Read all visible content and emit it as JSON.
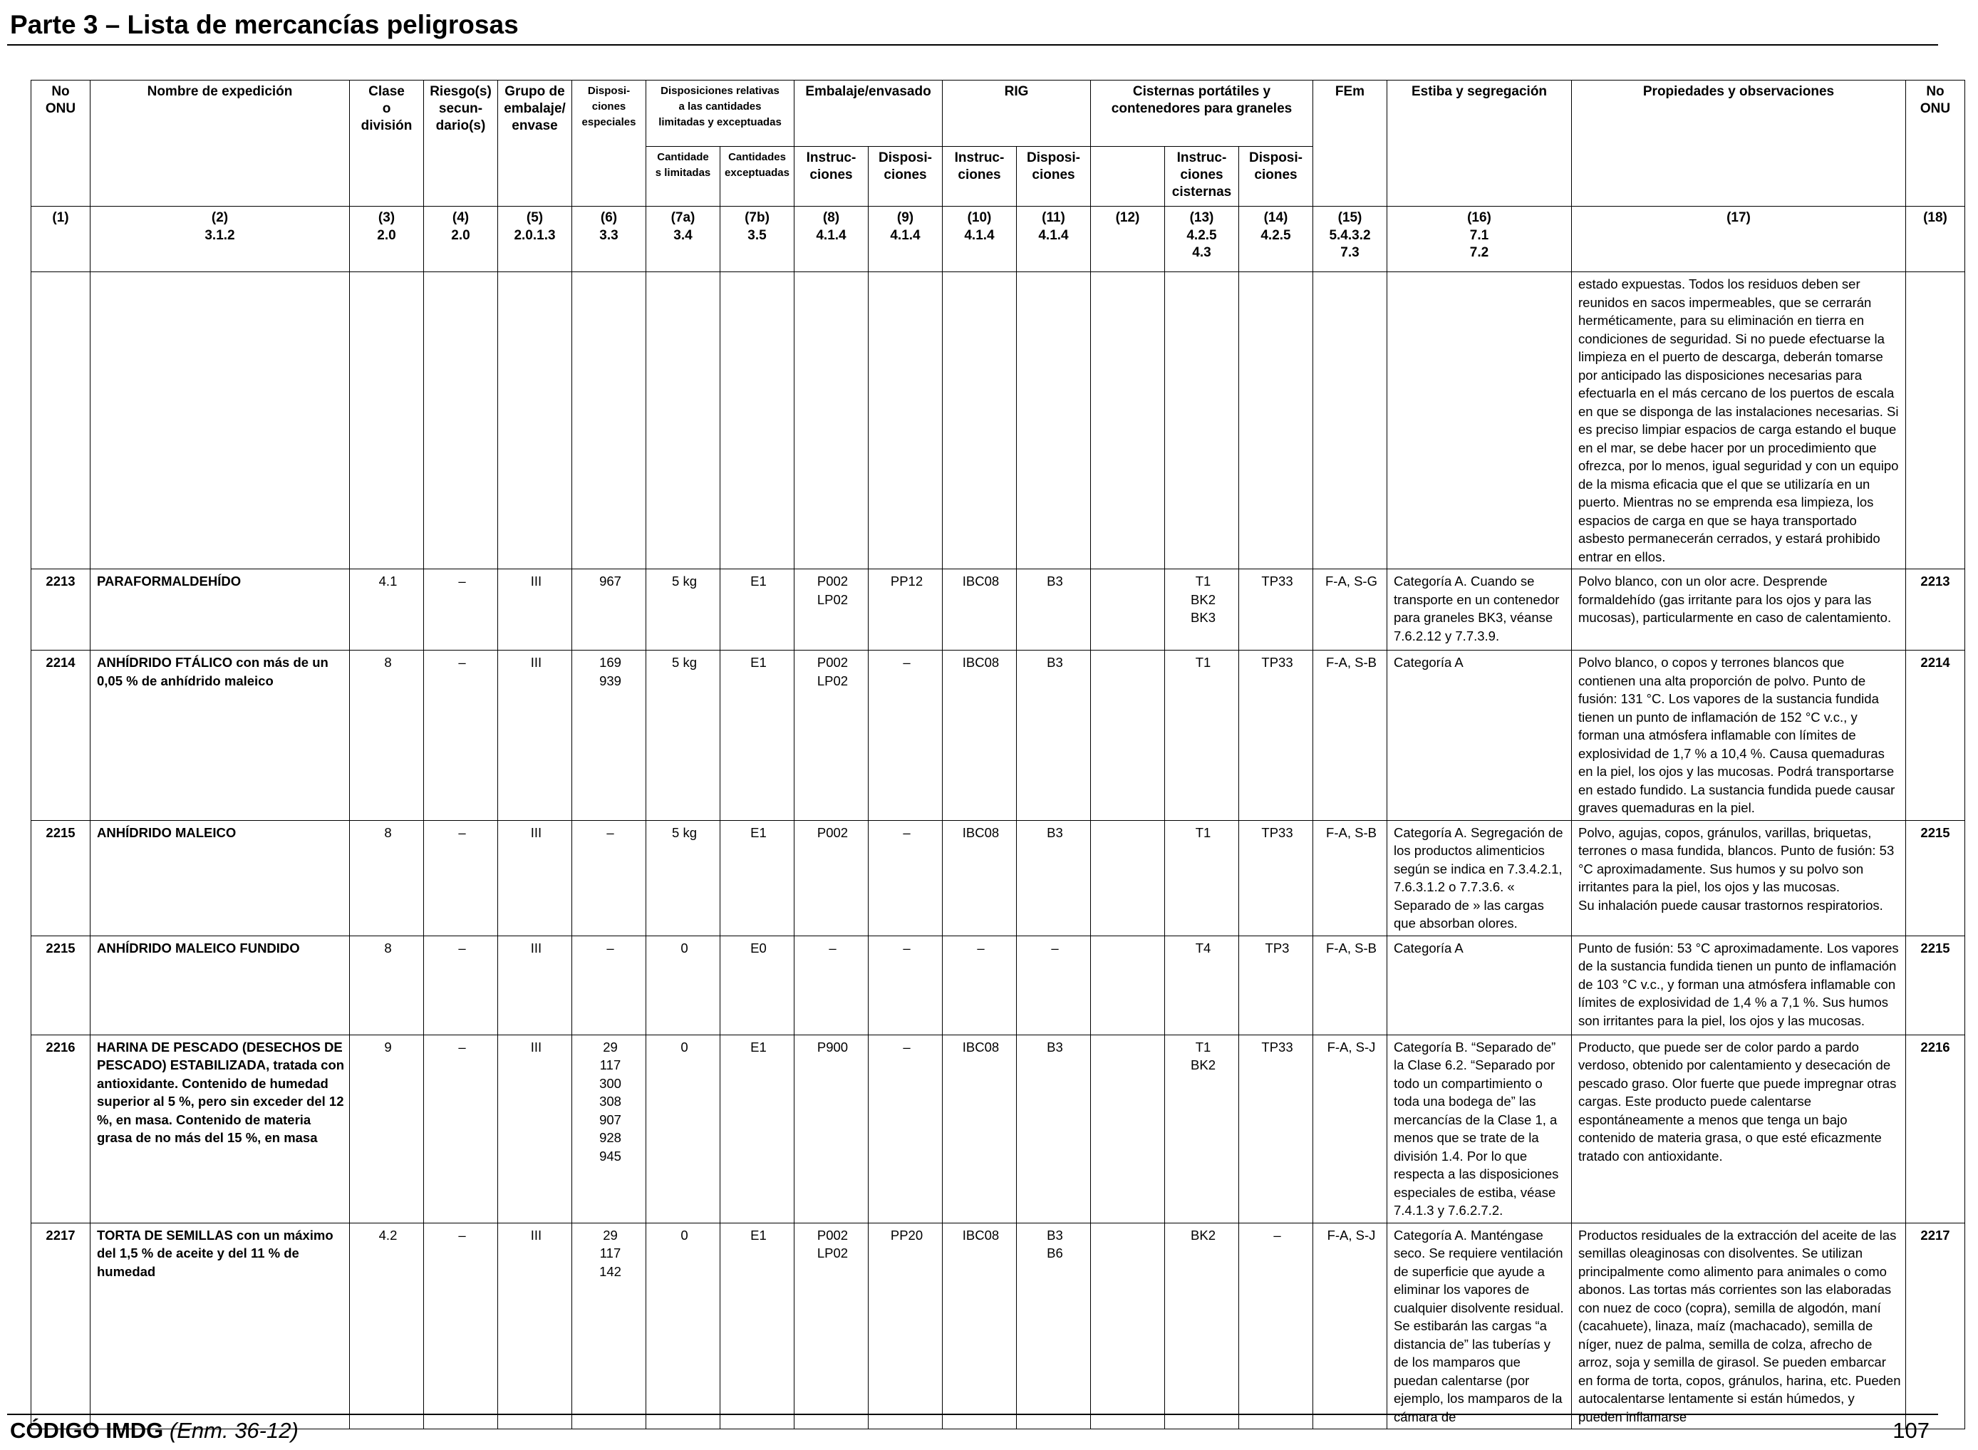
{
  "header": {
    "title": "Parte 3 – Lista de mercancías peligrosas"
  },
  "table": {
    "headers": {
      "un": "No\nONU",
      "name": "Nombre de expedición",
      "class": "Clase\no\ndivisión",
      "subrisk": "Riesgo(s)\nsecun-\ndario(s)",
      "pg": "Grupo de\nembalaje/\nenvase",
      "sp": "Disposi-\nciones\nespeciales",
      "limited": "Disposiciones relativas\na las cantidades\nlimitadas y exceptuadas",
      "limited_7a": "Cantidade\ns limitadas",
      "limited_7b": "Cantidades\nexceptuadas",
      "packing": "Embalaje/envasado",
      "instr": "Instruc-\nciones",
      "prov": "Disposi-\nciones",
      "ibc": "RIG",
      "tanks": "Cisternas portátiles y\ncontenedores para graneles",
      "tank_instr": "Instruc-\nciones\ncisternas",
      "ems": "FEm",
      "stowage": "Estiba y segregación",
      "props": "Propiedades y observaciones",
      "un_end": "No\nONU"
    },
    "column_numbers": [
      "(1)",
      "(2)\n3.1.2",
      "(3)\n2.0",
      "(4)\n2.0",
      "(5)\n2.0.1.3",
      "(6)\n3.3",
      "(7a)\n3.4",
      "(7b)\n3.5",
      "(8)\n4.1.4",
      "(9)\n4.1.4",
      "(10)\n4.1.4",
      "(11)\n4.1.4",
      "(12)",
      "(13)\n4.2.5\n4.3",
      "(14)\n4.2.5",
      "(15)\n5.4.3.2\n7.3",
      "(16)\n7.1\n7.2",
      "(17)",
      "(18)"
    ],
    "continuation": "estado expuestas. Todos los residuos deben ser reunidos en sacos impermeables, que se cerrarán herméticamente, para su eliminación en tierra en condiciones de seguridad. Si no puede efectuarse la limpieza en el puerto de descarga, deberán tomarse por anticipado las disposiciones necesarias para efectuarla en el más cercano de los puertos de escala en que se disponga de las instalaciones necesarias. Si es preciso limpiar espacios de carga estando el buque en el mar, se debe hacer por un procedimiento que ofrezca, por lo menos, igual seguridad y con un equipo de la misma eficacia que el que se utilizaría en un puerto. Mientras no se emprenda esa limpieza, los espacios de carga en que se haya transportado asbesto permanecerán cerrados, y estará prohibido entrar en ellos.",
    "rows": [
      {
        "un": "2213",
        "name_bold": "PARAFORMALDEHÍDO",
        "name_rest": "",
        "class": "4.1",
        "subrisk": "–",
        "pg": "III",
        "sp": "967",
        "limited": "5 kg",
        "excepted": "E1",
        "pack_instr": "P002\nLP02",
        "pack_prov": "PP12",
        "ibc_instr": "IBC08",
        "ibc_prov": "B3",
        "imo": "",
        "tank_instr": "T1\nBK2\nBK3",
        "tank_prov": "TP33",
        "ems": "F-A, S-G",
        "stowage": "Categoría A. Cuando se transporte en un contenedor para graneles BK3, véanse 7.6.2.12 y 7.7.3.9.",
        "props": "Polvo blanco, con un olor acre. Desprende formaldehído (gas irritante para los ojos y para las mucosas), particularmente en caso de calentamiento."
      },
      {
        "un": "2214",
        "name_bold": "ANHÍDRIDO FTÁLICO con más de un 0,05 % de anhídrido maleico",
        "name_rest": "",
        "class": "8",
        "subrisk": "–",
        "pg": "III",
        "sp": "169\n939",
        "limited": "5 kg",
        "excepted": "E1",
        "pack_instr": "P002\nLP02",
        "pack_prov": "–",
        "ibc_instr": "IBC08",
        "ibc_prov": "B3",
        "imo": "",
        "tank_instr": "T1",
        "tank_prov": "TP33",
        "ems": "F-A, S-B",
        "stowage": "Categoría A",
        "props": "Polvo blanco, o copos y terrones blancos que contienen una alta proporción de polvo. Punto de fusión: 131 °C. Los vapores de la sustancia fundida tienen un punto de inflamación de 152 °C v.c., y forman una atmósfera inflamable con límites de explosividad de 1,7 % a 10,4 %. Causa quemaduras en la piel, los ojos y las mucosas. Podrá transportarse en estado fundido. La sustancia fundida puede causar graves quemaduras en la piel."
      },
      {
        "un": "2215",
        "name_bold": "ANHÍDRIDO MALEICO",
        "name_rest": "",
        "class": "8",
        "subrisk": "–",
        "pg": "III",
        "sp": "–",
        "limited": "5 kg",
        "excepted": "E1",
        "pack_instr": "P002",
        "pack_prov": "–",
        "ibc_instr": "IBC08",
        "ibc_prov": "B3",
        "imo": "",
        "tank_instr": "T1",
        "tank_prov": "TP33",
        "ems": "F-A, S-B",
        "stowage": "Categoría A. Segregación de los productos alimenticios según se indica en 7.3.4.2.1, 7.6.3.1.2 o 7.7.3.6. « Separado de » las cargas que absorban olores.",
        "props": "Polvo, agujas, copos, gránulos, varillas, briquetas, terrones o masa fundida, blancos. Punto de fusión: 53 °C aproximadamente. Sus humos y su polvo son irritantes para la piel, los ojos y las mucosas.\nSu inhalación puede causar trastornos respiratorios."
      },
      {
        "un": "2215",
        "name_bold": "ANHÍDRIDO MALEICO FUNDIDO",
        "name_rest": "",
        "class": "8",
        "subrisk": "–",
        "pg": "III",
        "sp": "–",
        "limited": "0",
        "excepted": "E0",
        "pack_instr": "–",
        "pack_prov": "–",
        "ibc_instr": "–",
        "ibc_prov": "–",
        "imo": "",
        "tank_instr": "T4",
        "tank_prov": "TP3",
        "ems": "F-A, S-B",
        "stowage": "Categoría A",
        "props": "Punto de fusión: 53 °C aproximadamente. Los vapores de la sustancia fundida tienen un punto de inflamación de 103 °C v.c., y forman una atmósfera inflamable con límites de explosividad de 1,4 % a 7,1 %. Sus humos son irritantes para la piel, los ojos y las mucosas."
      },
      {
        "un": "2216",
        "name_bold": "HARINA DE PESCADO (DESECHOS DE PESCADO) ESTABILIZADA,",
        "name_rest": " tratada con antioxidante. Contenido de humedad superior al 5 %, pero sin exceder del 12 %, en masa. Contenido de materia grasa de no más del 15 %, en masa",
        "class": "9",
        "subrisk": "–",
        "pg": "III",
        "sp": "29\n117\n300\n308\n907\n928\n945",
        "limited": "0",
        "excepted": "E1",
        "pack_instr": "P900",
        "pack_prov": "–",
        "ibc_instr": "IBC08",
        "ibc_prov": "B3",
        "imo": "",
        "tank_instr": "T1\nBK2",
        "tank_prov": "TP33",
        "ems": "F-A, S-J",
        "stowage": "Categoría B. “Separado de” la Clase 6.2. “Separado por todo un compartimiento o toda una bodega de” las mercancías de la Clase 1, a menos que se trate de la división 1.4. Por lo que respecta a las disposiciones especiales de estiba, véase 7.4.1.3 y 7.6.2.7.2.",
        "props": "Producto, que puede ser de color pardo a pardo verdoso, obtenido por calentamiento y desecación de pescado graso. Olor fuerte que puede impregnar otras cargas. Este producto puede calentarse espontáneamente a menos que tenga un bajo contenido de materia grasa, o que esté eficazmente tratado con antioxidante."
      },
      {
        "un": "2217",
        "name_bold": "TORTA DE SEMILLAS con un máximo del 1,5 % de aceite y del 11 % de humedad",
        "name_rest": "",
        "class": "4.2",
        "subrisk": "–",
        "pg": "III",
        "sp": "29\n117\n142",
        "limited": "0",
        "excepted": "E1",
        "pack_instr": "P002\nLP02",
        "pack_prov": "PP20",
        "ibc_instr": "IBC08",
        "ibc_prov": "B3\nB6",
        "imo": "",
        "tank_instr": "BK2",
        "tank_prov": "–",
        "ems": "F-A, S-J",
        "stowage": "Categoría A. Manténgase seco. Se requiere ventilación de superficie que ayude a eliminar los vapores de cualquier disolvente residual. Se estibarán las cargas “a distancia de” las tuberías y de los mamparos que puedan calentarse (por ejemplo, los mamparos de la cámara de",
        "props": "Productos residuales de la extracción del aceite de las semillas oleaginosas con disolventes. Se utilizan principalmente como alimento para animales o como abonos. Las tortas más corrientes son las elaboradas con nuez de coco (copra), semilla de algodón, maní (cacahuete), linaza, maíz (machacado), semilla de níger, nuez de palma, semilla de colza, afrecho de arroz, soja y semilla de girasol. Se pueden embarcar en forma de torta, copos, gránulos, harina, etc. Pueden autocalentarse lentamente si están húmedos, y pueden inflamarse"
      }
    ]
  },
  "footer": {
    "code": "CÓDIGO IMDG",
    "amendment": "(Enm. 36-12)",
    "page": "107"
  }
}
